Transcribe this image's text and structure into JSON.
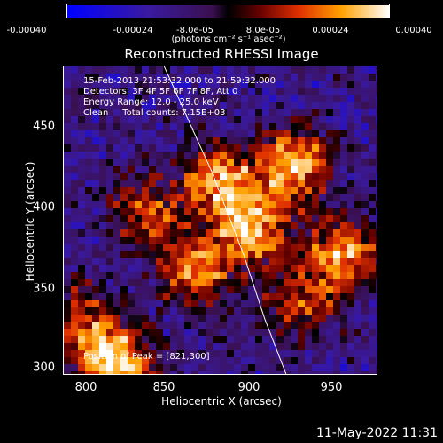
{
  "chart_data": {
    "type": "heatmap",
    "title": "Reconstructed RHESSI Image",
    "xlabel": "Heliocentric X (arcsec)",
    "ylabel": "Heliocentric Y (arcsec)",
    "xlim": [
      790,
      980
    ],
    "ylim": [
      296,
      485
    ],
    "x_ticks": [
      "800",
      "850",
      "900",
      "950"
    ],
    "y_ticks": [
      "300",
      "350",
      "400",
      "450"
    ],
    "colorbar": {
      "ticks": [
        "-0.00040",
        "-0.00024",
        "-8.0e-05",
        "8.0e-05",
        "0.00024",
        "0.00040"
      ],
      "unit_label": "(photons cm⁻² s⁻¹ asec⁻²)",
      "range": [
        -0.0004,
        0.0004
      ]
    },
    "annotations": {
      "time_range": "15-Feb-2013 21:53:32.000 to 21:59:32.000",
      "detectors": "Detectors: 3F 4F 5F 6F 7F 8F, Att 0",
      "energy": "Energy Range: 12.0 - 25.0 keV",
      "clean": "Clean     Total counts: 7.15E+03",
      "peak": "Position of Peak = [821,300]"
    },
    "peak_position": [
      821,
      300
    ],
    "limb_curve": [
      [
        851,
        485
      ],
      [
        880,
        420
      ],
      [
        899,
        370
      ],
      [
        912,
        330
      ],
      [
        925,
        296
      ]
    ],
    "bright_regions": [
      {
        "x": 821,
        "y": 302,
        "intensity": 1.0
      },
      {
        "x": 930,
        "y": 425,
        "intensity": 0.85
      },
      {
        "x": 905,
        "y": 385,
        "intensity": 0.8
      },
      {
        "x": 885,
        "y": 415,
        "intensity": 0.75
      },
      {
        "x": 870,
        "y": 360,
        "intensity": 0.7
      },
      {
        "x": 960,
        "y": 370,
        "intensity": 0.75
      },
      {
        "x": 840,
        "y": 395,
        "intensity": 0.55
      },
      {
        "x": 935,
        "y": 340,
        "intensity": 0.55
      },
      {
        "x": 800,
        "y": 330,
        "intensity": 0.5
      }
    ]
  },
  "timestamp": "11-May-2022 11:31"
}
